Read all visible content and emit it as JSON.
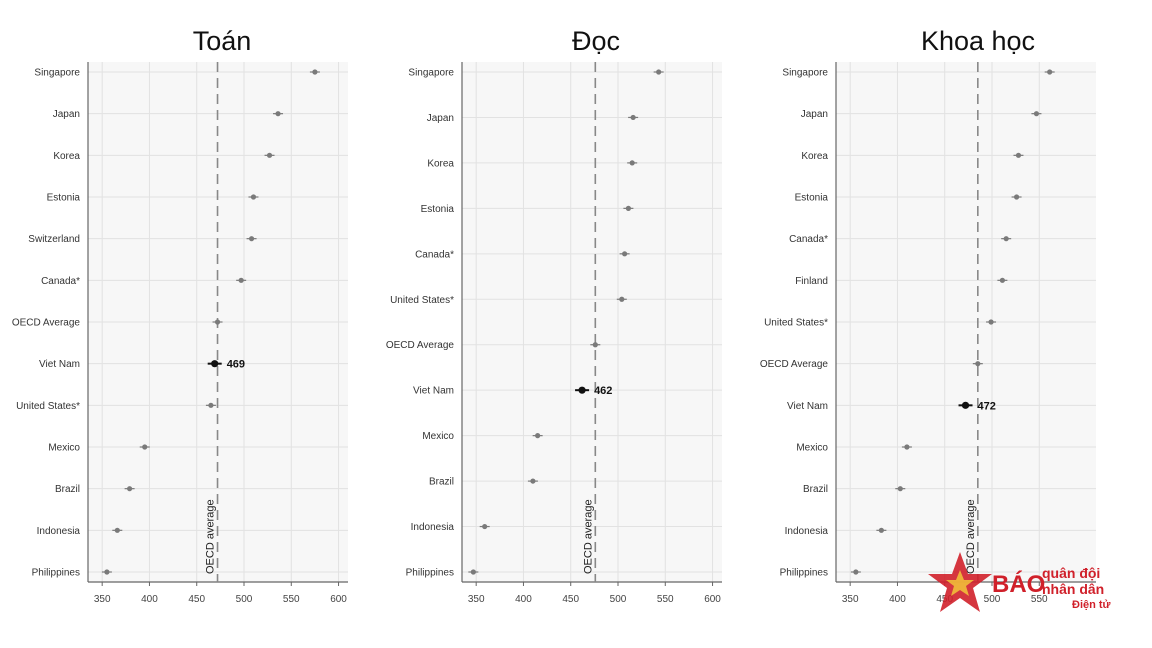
{
  "chart_data": [
    {
      "type": "scatter",
      "title": "Toán",
      "categories": [
        "Singapore",
        "Japan",
        "Korea",
        "Estonia",
        "Switzerland",
        "Canada*",
        "OECD Average",
        "Viet Nam",
        "United States*",
        "Mexico",
        "Brazil",
        "Indonesia",
        "Philippines"
      ],
      "values": [
        575,
        536,
        527,
        510,
        508,
        497,
        472,
        469,
        465,
        395,
        379,
        366,
        355
      ],
      "xticks": [
        350,
        400,
        450,
        500,
        550,
        600
      ],
      "xlim": [
        335,
        610
      ],
      "reference_value": 472,
      "reference_label": "OECD average",
      "highlight": {
        "category": "Viet Nam",
        "label": "469"
      }
    },
    {
      "type": "scatter",
      "title": "Đọc",
      "categories": [
        "Singapore",
        "Japan",
        "Korea",
        "Estonia",
        "Canada*",
        "United States*",
        "OECD Average",
        "Viet Nam",
        "Mexico",
        "Brazil",
        "Indonesia",
        "Philippines"
      ],
      "values": [
        543,
        516,
        515,
        511,
        507,
        504,
        476,
        462,
        415,
        410,
        359,
        347
      ],
      "xticks": [
        350,
        400,
        450,
        500,
        550,
        600
      ],
      "xlim": [
        335,
        610
      ],
      "reference_value": 476,
      "reference_label": "OECD average",
      "highlight": {
        "category": "Viet Nam",
        "label": "462"
      }
    },
    {
      "type": "scatter",
      "title": "Khoa học",
      "categories": [
        "Singapore",
        "Japan",
        "Korea",
        "Estonia",
        "Canada*",
        "Finland",
        "United States*",
        "OECD Average",
        "Viet Nam",
        "Mexico",
        "Brazil",
        "Indonesia",
        "Philippines"
      ],
      "values": [
        561,
        547,
        528,
        526,
        515,
        511,
        499,
        485,
        472,
        410,
        403,
        383,
        356
      ],
      "xticks": [
        350,
        400,
        450,
        500,
        550
      ],
      "xlim": [
        335,
        610
      ],
      "reference_value": 485,
      "reference_label": "OECD average",
      "highlight": {
        "category": "Viet Nam",
        "label": "472"
      }
    }
  ],
  "colors": {
    "panel_bg": "#f7f7f7",
    "grid": "#e2e2e2",
    "point": "#7a7a7a",
    "highlight_point": "#111111",
    "reference_line": "#888888",
    "watermark": "#d0202a"
  },
  "watermark": {
    "brand": "BÁO",
    "line1": "quân đội",
    "line2": "nhân dân",
    "line3": "Điện tử",
    "icon": "star-icon"
  }
}
